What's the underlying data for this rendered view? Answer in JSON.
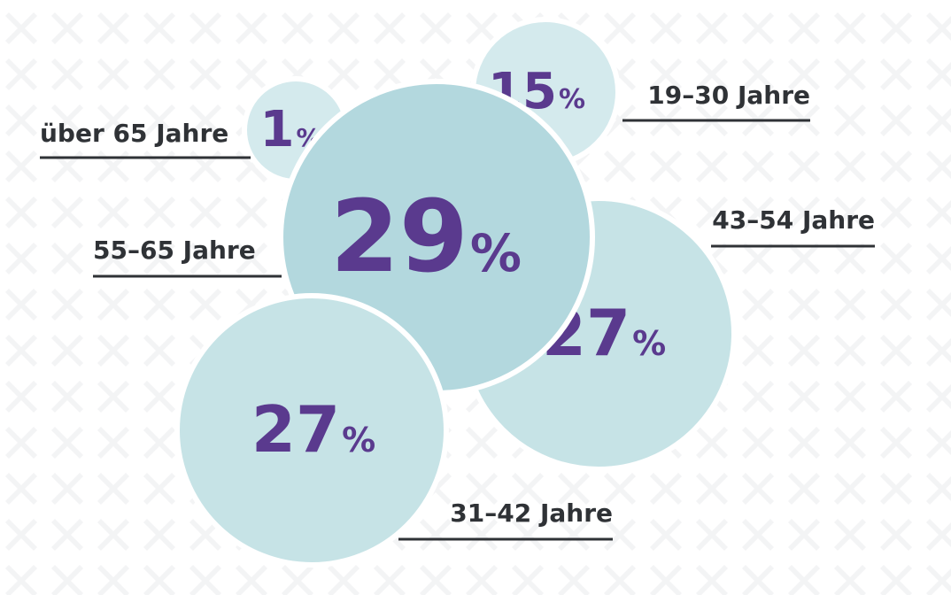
{
  "chart_data": {
    "type": "bubble",
    "title": "",
    "unit": "%",
    "categories": [
      "über 65 Jahre",
      "19–30 Jahre",
      "55–65 Jahre",
      "43–54 Jahre",
      "31–42 Jahre"
    ],
    "values": [
      1,
      15,
      29,
      27,
      27
    ],
    "series": [
      {
        "name": "über 65 Jahre",
        "value": 1,
        "number_label": "1",
        "unit_label": "%"
      },
      {
        "name": "19–30 Jahre",
        "value": 15,
        "number_label": "15",
        "unit_label": "%"
      },
      {
        "name": "55–65 Jahre",
        "value": 29,
        "number_label": "29",
        "unit_label": "%"
      },
      {
        "name": "43–54 Jahre",
        "value": 27,
        "number_label": "27",
        "unit_label": "%"
      },
      {
        "name": "31–42 Jahre",
        "value": 27,
        "number_label": "27",
        "unit_label": "%"
      }
    ],
    "colors": {
      "bubble_main": "#b3d8de",
      "bubble_light": "#c6e3e6",
      "bubble_pale": "#d4eaed",
      "text_value": "#5a3a8e",
      "text_label": "#2f3236",
      "leader_line": "#2f3236",
      "pattern": "#f1f2f3"
    }
  }
}
